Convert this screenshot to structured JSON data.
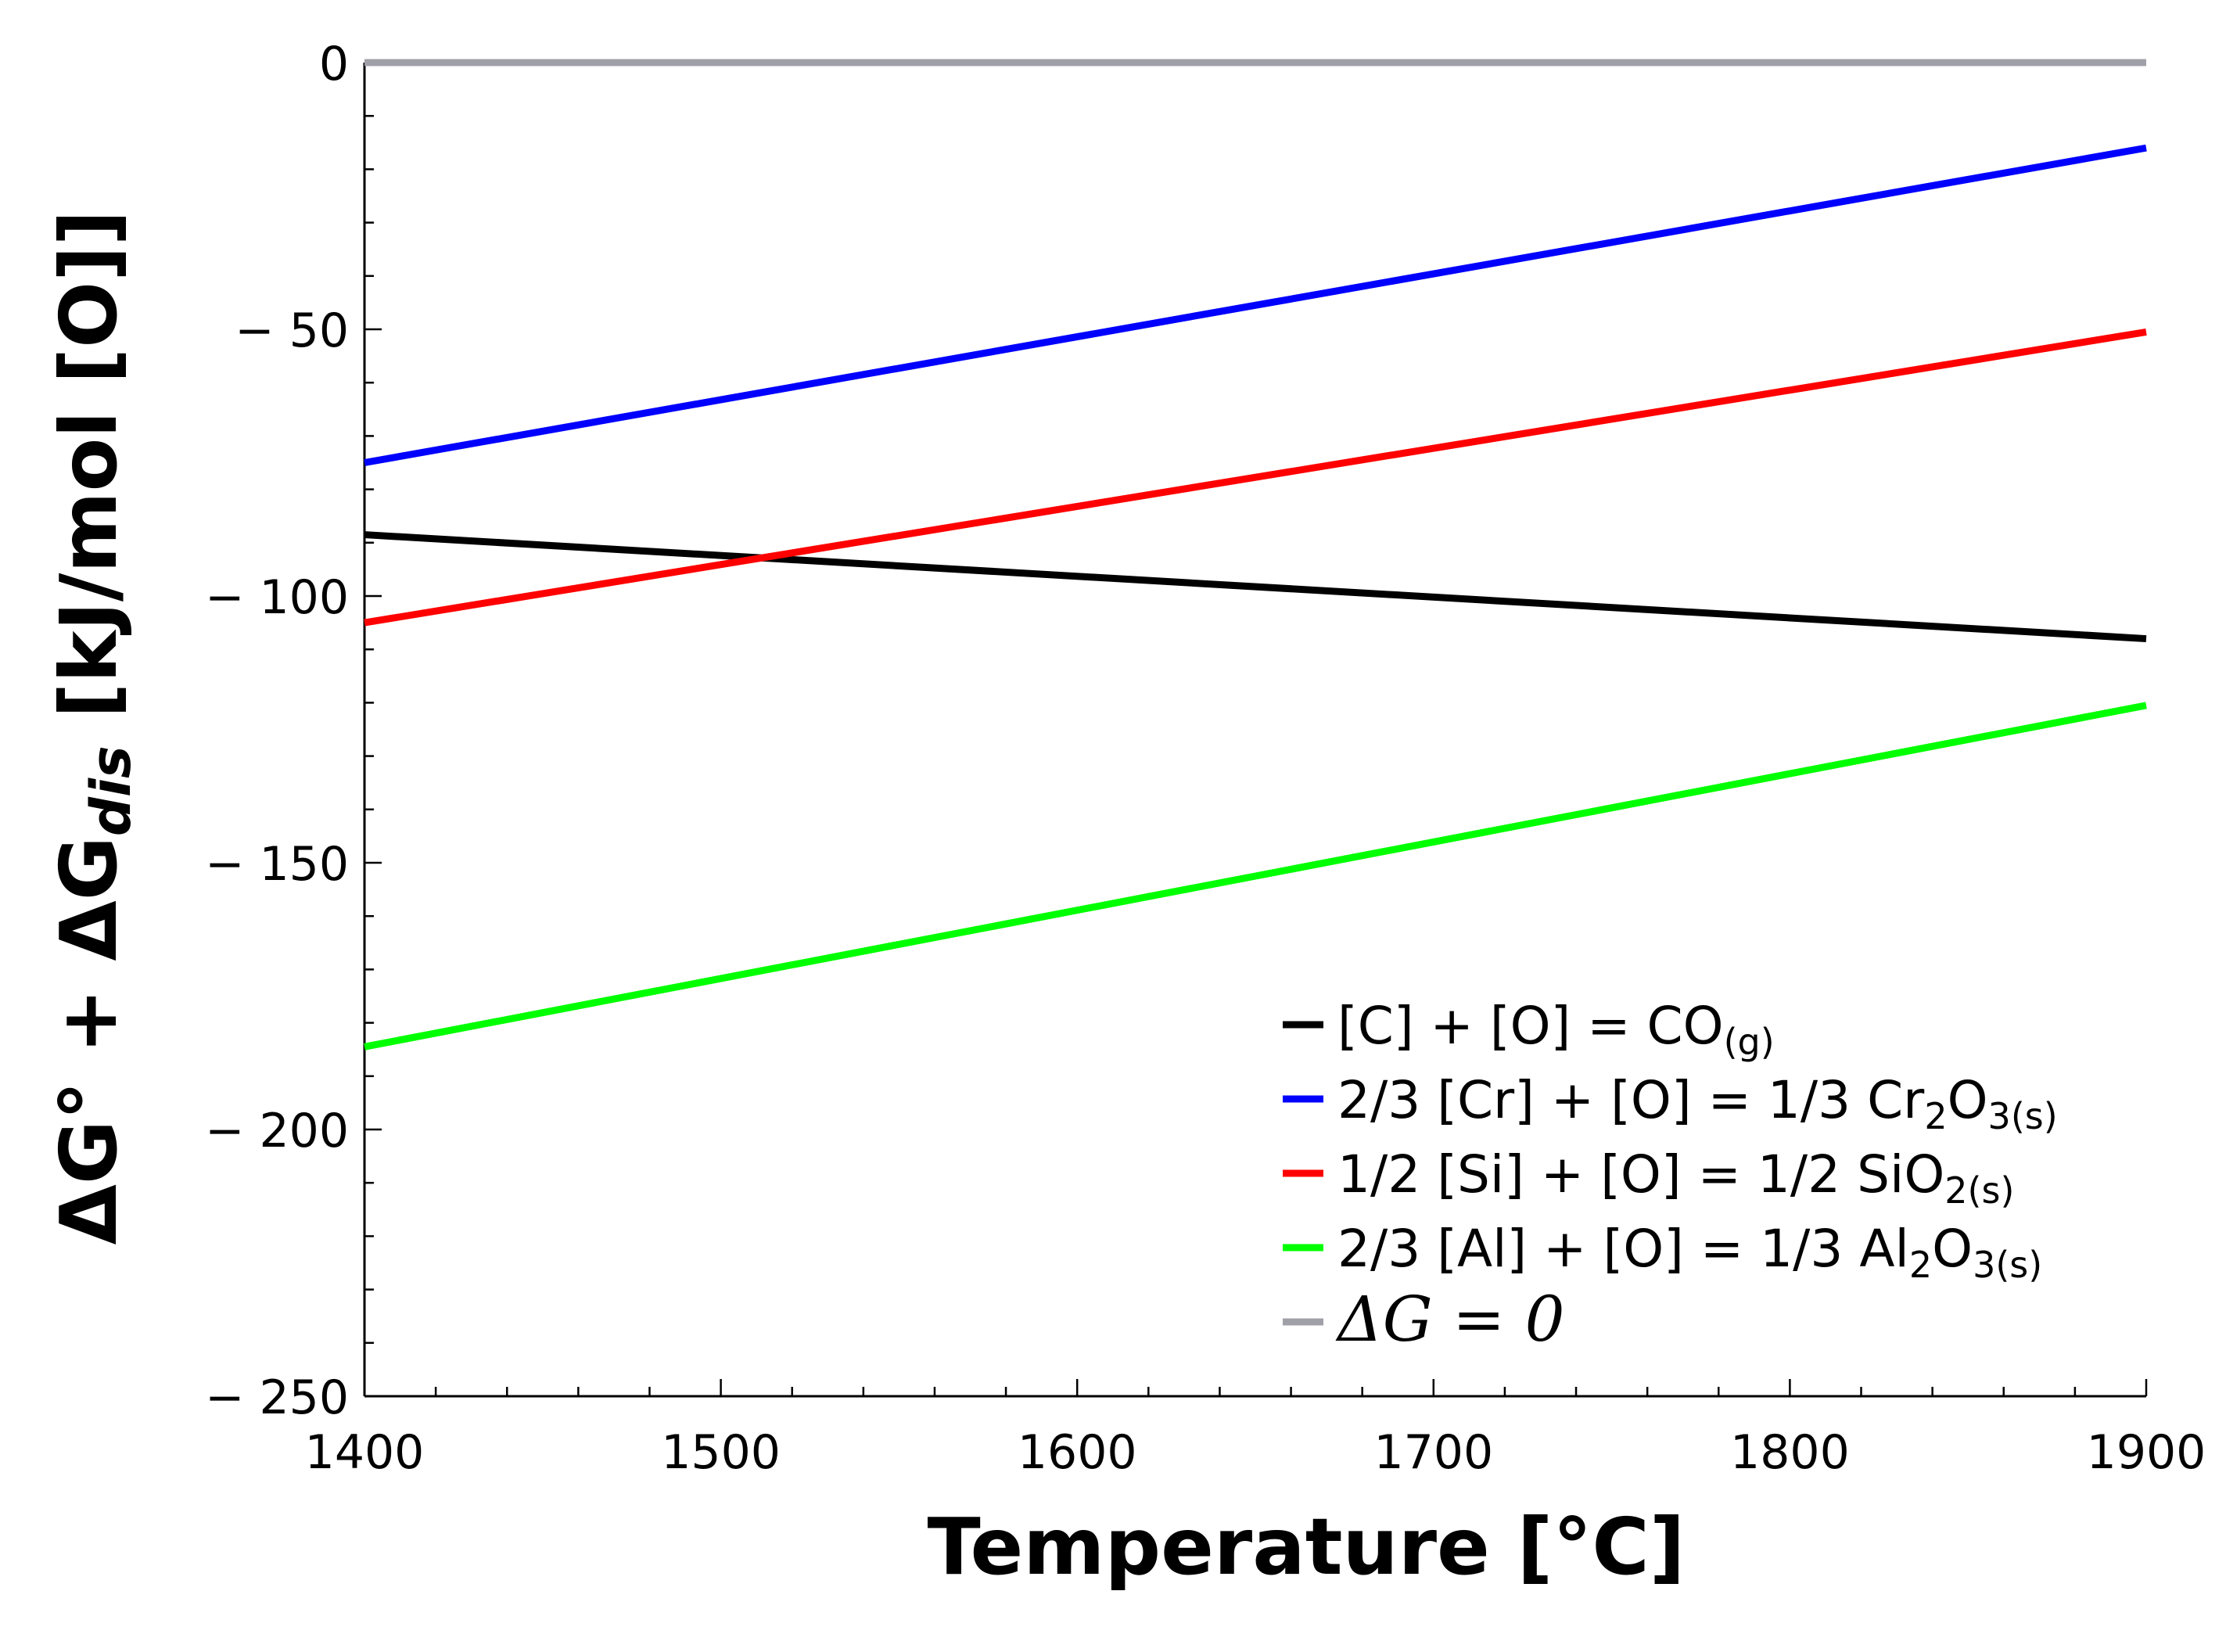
{
  "chart_data": {
    "type": "line",
    "title": "",
    "xlabel": "Temperature [°C]",
    "ylabel": {
      "prefix": "ΔG° + ΔG",
      "subscript": "dis",
      "suffix": " [kJ/mol [O]]"
    },
    "xlim": [
      1400,
      1900
    ],
    "ylim": [
      -250,
      0
    ],
    "xticks": [
      1400,
      1500,
      1600,
      1700,
      1800,
      1900
    ],
    "yticks": [
      0,
      -50,
      -100,
      -150,
      -200,
      -250
    ],
    "ytick_labels": [
      "0",
      "− 50",
      "− 100",
      "− 150",
      "− 200",
      "− 250"
    ],
    "legend_position": "bottom-right",
    "series": [
      {
        "name": "[C] + [O] = CO(g)",
        "color": "#000000",
        "x": [
          1400,
          1900
        ],
        "y": [
          -88.5,
          -108
        ],
        "label_parts": [
          {
            "t": "[C] + [O] = CO"
          },
          {
            "t": "(g)",
            "sub": true
          }
        ]
      },
      {
        "name": "2/3 [Cr] + [O] = 1/3 Cr2O3(s)",
        "color": "#0000ff",
        "x": [
          1400,
          1900
        ],
        "y": [
          -75,
          -16
        ],
        "label_parts": [
          {
            "t": "2/3 [Cr] + [O] = 1/3 Cr"
          },
          {
            "t": "2",
            "sub": true
          },
          {
            "t": "O"
          },
          {
            "t": "3(s)",
            "sub": true
          }
        ]
      },
      {
        "name": "1/2 [Si] + [O] = 1/2 SiO2(s)",
        "color": "#ff0000",
        "x": [
          1400,
          1900
        ],
        "y": [
          -105,
          -50.5
        ],
        "label_parts": [
          {
            "t": "1/2 [Si] + [O] = 1/2 SiO"
          },
          {
            "t": "2(s)",
            "sub": true
          }
        ]
      },
      {
        "name": "2/3 [Al] + [O] = 1/3 Al2O3(s)",
        "color": "#00ff00",
        "x": [
          1400,
          1900
        ],
        "y": [
          -184.5,
          -120.5
        ],
        "label_parts": [
          {
            "t": "2/3 [Al] + [O] = 1/3 Al"
          },
          {
            "t": "2",
            "sub": true
          },
          {
            "t": "O"
          },
          {
            "t": "3(s)",
            "sub": true
          }
        ]
      },
      {
        "name": "ΔG = 0",
        "color": "#a0a0a8",
        "x": [
          1400,
          1900
        ],
        "y": [
          0,
          0
        ],
        "math": true,
        "label_parts": [
          {
            "t": "ΔG = 0",
            "math": true
          }
        ]
      }
    ]
  }
}
